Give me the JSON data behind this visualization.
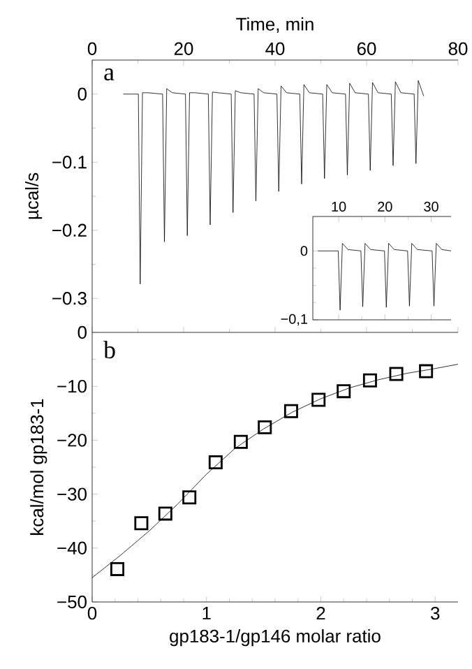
{
  "chart_data": [
    {
      "type": "line",
      "xlabel": "Time, min",
      "ylabel": "µcal/s",
      "annotations": [
        "a"
      ],
      "color": "#000000",
      "x": [
        6.8,
        10.1,
        10.5,
        11.0,
        12.2,
        15.4,
        15.8,
        16.3,
        17.5,
        20.4,
        20.8,
        21.3,
        22.5,
        25.4,
        25.8,
        26.3,
        27.5,
        30.4,
        30.8,
        31.3,
        32.5,
        35.4,
        35.8,
        36.3,
        37.5,
        40.4,
        40.8,
        41.3,
        42.5,
        45.4,
        45.8,
        46.3,
        47.5,
        50.4,
        50.8,
        51.3,
        52.5,
        55.4,
        55.8,
        56.3,
        57.5,
        60.4,
        60.8,
        61.3,
        62.5,
        65.4,
        65.8,
        66.3,
        67.5,
        70.4,
        70.8,
        71.3,
        72.5
      ],
      "values": [
        0,
        0,
        -0.279,
        0.002,
        0.002,
        0,
        -0.217,
        0.008,
        0.002,
        0,
        -0.208,
        0.002,
        0.002,
        0,
        -0.192,
        0.003,
        0.002,
        0,
        -0.174,
        0.005,
        0.002,
        0,
        -0.157,
        0.008,
        0.002,
        0,
        -0.143,
        0.012,
        0.002,
        0,
        -0.132,
        0.014,
        0.002,
        0,
        -0.124,
        0.014,
        0.002,
        0,
        -0.119,
        0.016,
        0.002,
        0,
        -0.112,
        0.017,
        0.002,
        0,
        -0.105,
        0.018,
        0.002,
        0,
        -0.102,
        0.02,
        -0.003
      ],
      "xlim": [
        0,
        80
      ],
      "ylim": [
        -0.35,
        0.05
      ],
      "xticks": [
        0,
        20,
        40,
        60,
        80
      ],
      "yticks": [
        0,
        {
          "value": -0.1,
          "label": "−0.1"
        },
        {
          "value": -0.2,
          "label": "−0.2"
        },
        {
          "value": -0.3,
          "label": "−0.3"
        }
      ]
    },
    {
      "type": "line",
      "color": "#000000",
      "x": [
        5.5,
        9.9,
        10.3,
        10.8,
        12.0,
        14.8,
        15.2,
        15.7,
        16.9,
        19.9,
        20.3,
        20.8,
        22.0,
        24.9,
        25.3,
        25.8,
        27.0,
        30.2,
        30.6,
        31.1,
        32.3,
        34.3
      ],
      "values": [
        0,
        0,
        -0.086,
        0.011,
        0.002,
        0,
        -0.081,
        0.011,
        0.002,
        0,
        -0.082,
        0.011,
        0.002,
        0,
        -0.08,
        0.011,
        0.002,
        0,
        -0.08,
        0.011,
        0.002,
        0
      ],
      "xlim": [
        4.4,
        34.3
      ],
      "ylim": [
        -0.1,
        0.05
      ],
      "xticks": [
        10,
        20,
        30
      ],
      "yticks": [
        0,
        {
          "value": -0.1,
          "label": "−0,1"
        }
      ]
    },
    {
      "type": "scatter",
      "xlabel": "gp183-1/gp146 molar ratio",
      "ylabel": "kcal/mol gp183-1",
      "annotations": [
        "b"
      ],
      "series": [
        {
          "type": "scatter",
          "marker": "square",
          "color": "#000000",
          "x": [
            0.22,
            0.43,
            0.64,
            0.85,
            1.08,
            1.3,
            1.51,
            1.74,
            1.98,
            2.2,
            2.43,
            2.66,
            2.92
          ],
          "values": [
            -43.9,
            -35.4,
            -33.6,
            -30.6,
            -24.1,
            -20.3,
            -17.6,
            -14.6,
            -12.5,
            -10.9,
            -8.9,
            -7.7,
            -7.2
          ]
        },
        {
          "type": "line",
          "color": "#000000",
          "x": [
            0,
            0.25,
            0.5,
            0.75,
            1.0,
            1.25,
            1.5,
            1.75,
            2.0,
            2.25,
            2.5,
            2.75,
            3.0,
            3.2
          ],
          "values": [
            -45.5,
            -41.3,
            -36.8,
            -31.8,
            -26.3,
            -21.5,
            -17.9,
            -14.8,
            -12.3,
            -10.3,
            -8.8,
            -7.6,
            -6.7,
            -5.9
          ]
        }
      ],
      "xlim": [
        0,
        3.2
      ],
      "ylim": [
        -50,
        0
      ],
      "xticks": [
        0,
        1,
        2,
        3
      ],
      "yticks": [
        0,
        {
          "value": -10,
          "label": "−10"
        },
        {
          "value": -20,
          "label": "−20"
        },
        {
          "value": -30,
          "label": "−30"
        },
        {
          "value": -40,
          "label": "−40"
        },
        {
          "value": -50,
          "label": "−50"
        }
      ]
    }
  ]
}
